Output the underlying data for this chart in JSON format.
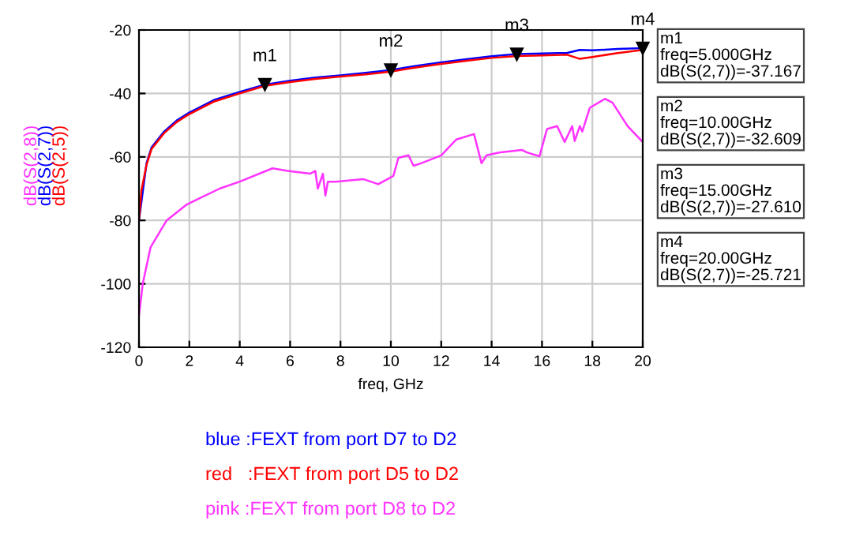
{
  "chart_data": {
    "type": "line",
    "xlabel": "freq, GHz",
    "xlim": [
      0,
      20
    ],
    "xticks": [
      0,
      2,
      4,
      6,
      8,
      10,
      12,
      14,
      16,
      18,
      20
    ],
    "ylim": [
      -120,
      -20
    ],
    "yticks": [
      -120,
      -100,
      -80,
      -60,
      -40,
      -20
    ],
    "grid": true,
    "legend": false,
    "marker": "none",
    "line_style": "solid",
    "series": [
      {
        "name": "dB(S(2,8))",
        "color": "#ff33ff",
        "x": [
          0,
          0.15,
          0.46,
          1.1,
          1.9,
          3.2,
          4,
          5.3,
          5.9,
          6.8,
          7,
          7.1,
          7.3,
          7.4,
          7.5,
          7.8,
          8.9,
          9.5,
          10.1,
          10.3,
          10.7,
          10.9,
          11.2,
          12,
          12.6,
          13.3,
          13.6,
          13.8,
          14.3,
          15.2,
          15.4,
          15.9,
          16.2,
          16.6,
          16.9,
          17.2,
          17.3,
          17.5,
          17.6,
          17.9,
          18.5,
          18.8,
          19.4,
          20
        ],
        "values": [
          -110,
          -100,
          -88.5,
          -80,
          -75,
          -70,
          -67.8,
          -63.6,
          -64.4,
          -65.3,
          -64.4,
          -70,
          -65.3,
          -72.2,
          -67.8,
          -67.8,
          -67,
          -68.6,
          -66,
          -60.3,
          -59.5,
          -62.8,
          -62,
          -59.5,
          -54.5,
          -52.8,
          -62,
          -59.5,
          -58.6,
          -57.8,
          -58.6,
          -59.8,
          -51.2,
          -50.3,
          -55.3,
          -50.3,
          -55,
          -50.3,
          -52,
          -44.5,
          -41.7,
          -42.9,
          -50.3,
          -55.3
        ]
      },
      {
        "name": "dB(S(2,7))",
        "color": "#0000ff",
        "x": [
          0,
          0.3,
          0.5,
          1,
          1.5,
          2,
          3,
          4,
          5,
          6,
          7,
          8,
          9,
          10,
          11,
          12,
          13,
          14,
          15,
          16,
          17,
          17.5,
          18,
          19,
          20
        ],
        "values": [
          -80,
          -62,
          -57,
          -52,
          -48.5,
          -46,
          -42,
          -39.5,
          -37.2,
          -36,
          -35,
          -34.3,
          -33.5,
          -32.6,
          -31.3,
          -30.2,
          -29.2,
          -28.3,
          -27.6,
          -27.4,
          -27.2,
          -26.3,
          -26.4,
          -26,
          -25.7
        ]
      },
      {
        "name": "dB(S(2,5))",
        "color": "#ff0000",
        "x": [
          0,
          0.1,
          0.3,
          0.5,
          1,
          1.5,
          2,
          3,
          4,
          5,
          6,
          7,
          8,
          9,
          10,
          11,
          12,
          13,
          14,
          15,
          16,
          17,
          17.5,
          18,
          19,
          20
        ],
        "values": [
          -80,
          -70.5,
          -62.5,
          -57.5,
          -52.5,
          -49,
          -46.5,
          -42.5,
          -40,
          -37.6,
          -36.4,
          -35.4,
          -34.7,
          -34,
          -33.1,
          -31.8,
          -30.7,
          -29.7,
          -28.8,
          -28.2,
          -28,
          -27.8,
          -29.1,
          -28.5,
          -27.3,
          -26.3
        ]
      }
    ],
    "annotations": [
      {
        "text": "m1",
        "x": 5,
        "y": -37.167
      },
      {
        "text": "m2",
        "x": 10,
        "y": -32.609
      },
      {
        "text": "m3",
        "x": 15,
        "y": -27.61
      },
      {
        "text": "m4",
        "x": 20,
        "y": -25.721
      },
      "m1\nfreq=5.000GHz\ndB(S(2,7))=-37.167",
      "m2\nfreq=10.00GHz\ndB(S(2,7))=-32.609",
      "m3\nfreq=15.00GHz\ndB(S(2,7))=-27.610",
      "m4\nfreq=20.00GHz\ndB(S(2,7))=-25.721",
      "blue :FEXT from port D7 to D2",
      "red   :FEXT from port D5 to D2",
      "pink :FEXT from port D8 to D2"
    ]
  }
}
